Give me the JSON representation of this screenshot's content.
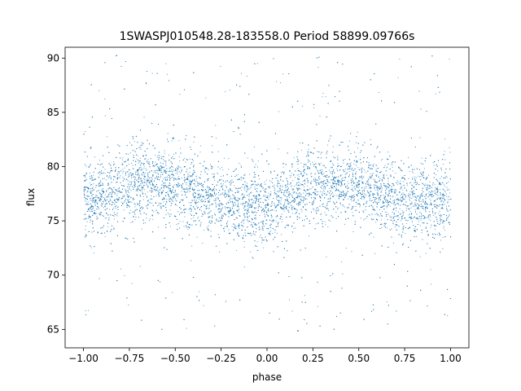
{
  "chart_data": {
    "type": "scatter",
    "title": "1SWASPJ010548.28-183558.0 Period 58899.09766s",
    "xlabel": "phase",
    "ylabel": "flux",
    "xlim": [
      -1.1,
      1.1
    ],
    "ylim": [
      63.3,
      91.0
    ],
    "xticks": [
      -1.0,
      -0.75,
      -0.5,
      -0.25,
      0.0,
      0.25,
      0.5,
      0.75,
      1.0
    ],
    "xtick_labels": [
      "−1.00",
      "−0.75",
      "−0.50",
      "−0.25",
      "0.00",
      "0.25",
      "0.50",
      "0.75",
      "1.00"
    ],
    "yticks": [
      65,
      70,
      75,
      80,
      85,
      90
    ],
    "ytick_labels": [
      "65",
      "70",
      "75",
      "80",
      "85",
      "90"
    ],
    "grid": false,
    "legend": "none",
    "marker_color": "#1f77b4",
    "series": [
      {
        "x_range": [
          -1.0,
          1.0
        ],
        "y_range": [
          64.6,
          90.3
        ],
        "mean_flux_curve": {
          "phase": [
            -1.0,
            -0.75,
            -0.6,
            -0.5,
            -0.25,
            0.0,
            0.25,
            0.35,
            0.5,
            0.75,
            1.0
          ],
          "flux": [
            76.6,
            78.4,
            78.6,
            78.2,
            76.9,
            76.2,
            78.3,
            78.6,
            78.2,
            76.8,
            76.6
          ]
        },
        "core_spread": 1.7,
        "outlier_band": [
          64.6,
          90.3
        ]
      }
    ]
  }
}
